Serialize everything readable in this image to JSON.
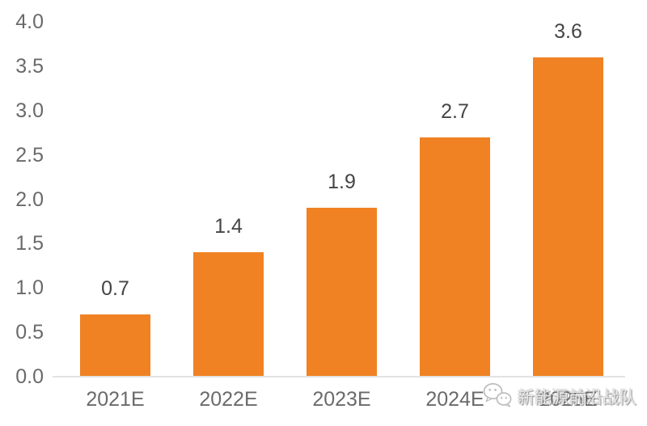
{
  "chart_data": {
    "type": "bar",
    "title": "",
    "xlabel": "",
    "ylabel": "",
    "categories": [
      "2021E",
      "2022E",
      "2023E",
      "2024E",
      "2025E"
    ],
    "values": [
      0.7,
      1.4,
      1.9,
      2.7,
      3.6
    ],
    "data_labels": [
      "0.7",
      "1.4",
      "1.9",
      "2.7",
      "3.6"
    ],
    "ylim": [
      0.0,
      4.0
    ],
    "ytick_step": 0.5,
    "ytick_labels": [
      "0.0",
      "0.5",
      "1.0",
      "1.5",
      "2.0",
      "2.5",
      "3.0",
      "3.5",
      "4.0"
    ],
    "grid": false,
    "legend": "none",
    "bar_color": "#F08223"
  },
  "colors": {
    "bar": "#F08223",
    "axis_line": "#E2E2E2",
    "tick_label": "#6A6A6A",
    "data_label": "#454545"
  },
  "watermark": {
    "icon": "wechat-icon",
    "text": "新能源前沿战队"
  }
}
